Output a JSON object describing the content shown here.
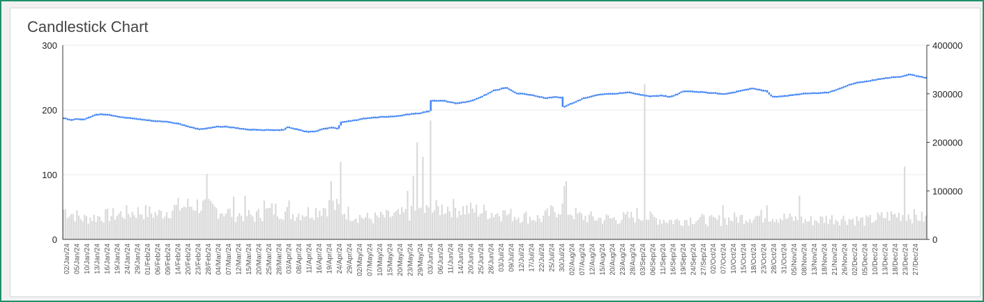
{
  "chart_data": {
    "type": "candlestick",
    "title": "Candlestick Chart",
    "y_left": {
      "min": 0,
      "max": 300,
      "ticks": [
        0,
        100,
        200,
        300
      ],
      "tick_labels": [
        "0",
        "100",
        "200",
        "300"
      ]
    },
    "y_right": {
      "min": 0,
      "max": 400000,
      "ticks": [
        0,
        100000,
        200000,
        300000,
        400000
      ],
      "tick_labels": [
        "0",
        "100000",
        "200000",
        "300000",
        "400000"
      ]
    },
    "x_labels": [
      "02/Jan/24",
      "05/Jan/24",
      "10/Jan/24",
      "13/Jan/24",
      "16/Jan/24",
      "19/Jan/24",
      "24/Jan/24",
      "29/Jan/24",
      "01/Feb/24",
      "06/Feb/24",
      "09/Feb/24",
      "14/Feb/24",
      "20/Feb/24",
      "23/Feb/24",
      "28/Feb/24",
      "04/Mar/24",
      "07/Mar/24",
      "12/Mar/24",
      "15/Mar/24",
      "20/Mar/24",
      "25/Mar/24",
      "28/Mar/24",
      "03/Apr/24",
      "08/Apr/24",
      "11/Apr/24",
      "16/Apr/24",
      "19/Apr/24",
      "24/Apr/24",
      "29/Apr/24",
      "02/May/24",
      "07/May/24",
      "10/May/24",
      "15/May/24",
      "20/May/24",
      "23/May/24",
      "29/May/24",
      "03/Jun/24",
      "06/Jun/24",
      "11/Jun/24",
      "14/Jun/24",
      "20/Jun/24",
      "25/Jun/24",
      "28/Jun/24",
      "03/Jul/24",
      "09/Jul/24",
      "12/Jul/24",
      "17/Jul/24",
      "22/Jul/24",
      "25/Jul/24",
      "30/Jul/24",
      "02/Aug/24",
      "07/Aug/24",
      "12/Aug/24",
      "15/Aug/24",
      "20/Aug/24",
      "23/Aug/24",
      "28/Aug/24",
      "03/Sep/24",
      "06/Sep/24",
      "11/Sep/24",
      "16/Sep/24",
      "19/Sep/24",
      "24/Sep/24",
      "27/Sep/24",
      "02/Oct/24",
      "07/Oct/24",
      "10/Oct/24",
      "15/Oct/24",
      "18/Oct/24",
      "23/Oct/24",
      "28/Oct/24",
      "31/Oct/24",
      "05/Nov/24",
      "08/Nov/24",
      "13/Nov/24",
      "18/Nov/24",
      "21/Nov/24",
      "26/Nov/24",
      "02/Dec/24",
      "05/Dec/24",
      "10/Dec/24",
      "13/Dec/24",
      "18/Dec/24",
      "23/Dec/24",
      "27/Dec/24"
    ],
    "price_profile": [
      [
        0,
        188
      ],
      [
        3,
        185
      ],
      [
        6,
        187
      ],
      [
        10,
        186
      ],
      [
        13,
        189
      ],
      [
        16,
        193
      ],
      [
        19,
        194
      ],
      [
        24,
        193
      ],
      [
        29,
        190
      ],
      [
        32,
        189
      ],
      [
        36,
        188
      ],
      [
        40,
        186
      ],
      [
        46,
        184
      ],
      [
        52,
        183
      ],
      [
        55,
        182
      ],
      [
        60,
        179
      ],
      [
        66,
        174
      ],
      [
        70,
        171
      ],
      [
        74,
        172
      ],
      [
        80,
        175
      ],
      [
        84,
        175
      ],
      [
        90,
        173
      ],
      [
        95,
        171
      ],
      [
        100,
        170
      ],
      [
        105,
        170
      ],
      [
        110,
        170
      ],
      [
        115,
        170
      ],
      [
        117,
        174
      ],
      [
        121,
        171
      ],
      [
        127,
        167
      ],
      [
        132,
        168
      ],
      [
        135,
        171
      ],
      [
        140,
        174
      ],
      [
        143,
        171
      ],
      [
        145,
        182
      ],
      [
        150,
        184
      ],
      [
        158,
        188
      ],
      [
        165,
        190
      ],
      [
        172,
        191
      ],
      [
        180,
        194
      ],
      [
        186,
        196
      ],
      [
        191,
        199
      ],
      [
        192,
        215
      ],
      [
        198,
        215
      ],
      [
        205,
        211
      ],
      [
        210,
        213
      ],
      [
        214,
        216
      ],
      [
        219,
        222
      ],
      [
        225,
        231
      ],
      [
        231,
        235
      ],
      [
        236,
        227
      ],
      [
        242,
        225
      ],
      [
        247,
        222
      ],
      [
        252,
        219
      ],
      [
        256,
        221
      ],
      [
        260,
        220
      ],
      [
        261,
        205
      ],
      [
        265,
        210
      ],
      [
        272,
        219
      ],
      [
        280,
        225
      ],
      [
        288,
        226
      ],
      [
        295,
        228
      ],
      [
        300,
        225
      ],
      [
        306,
        222
      ],
      [
        312,
        223
      ],
      [
        317,
        221
      ],
      [
        321,
        225
      ],
      [
        324,
        230
      ],
      [
        330,
        229
      ],
      [
        340,
        227
      ],
      [
        345,
        225
      ],
      [
        355,
        231
      ],
      [
        360,
        234
      ],
      [
        367,
        230
      ],
      [
        370,
        221
      ],
      [
        376,
        222
      ],
      [
        381,
        224
      ],
      [
        387,
        226
      ],
      [
        393,
        227
      ],
      [
        400,
        228
      ],
      [
        405,
        233
      ],
      [
        410,
        239
      ],
      [
        415,
        243
      ],
      [
        420,
        245
      ],
      [
        425,
        248
      ],
      [
        430,
        250
      ],
      [
        434,
        252
      ],
      [
        438,
        252
      ],
      [
        442,
        256
      ],
      [
        446,
        253
      ],
      [
        451,
        250
      ]
    ],
    "volume_profile": [
      [
        0,
        65000
      ],
      [
        10,
        45000
      ],
      [
        20,
        50000
      ],
      [
        30,
        55000
      ],
      [
        40,
        60000
      ],
      [
        50,
        55000
      ],
      [
        60,
        70000
      ],
      [
        70,
        75000
      ],
      [
        80,
        65000
      ],
      [
        90,
        55000
      ],
      [
        100,
        50000
      ],
      [
        110,
        65000
      ],
      [
        120,
        55000
      ],
      [
        130,
        60000
      ],
      [
        140,
        75000
      ],
      [
        150,
        55000
      ],
      [
        160,
        45000
      ],
      [
        170,
        50000
      ],
      [
        180,
        55000
      ],
      [
        190,
        60000
      ],
      [
        200,
        70000
      ],
      [
        210,
        65000
      ],
      [
        220,
        60000
      ],
      [
        230,
        55000
      ],
      [
        240,
        50000
      ],
      [
        250,
        45000
      ],
      [
        260,
        70000
      ],
      [
        270,
        50000
      ],
      [
        280,
        45000
      ],
      [
        290,
        45000
      ],
      [
        300,
        50000
      ],
      [
        310,
        45000
      ],
      [
        320,
        40000
      ],
      [
        330,
        45000
      ],
      [
        340,
        40000
      ],
      [
        350,
        45000
      ],
      [
        360,
        50000
      ],
      [
        370,
        50000
      ],
      [
        380,
        45000
      ],
      [
        390,
        40000
      ],
      [
        400,
        45000
      ],
      [
        410,
        45000
      ],
      [
        420,
        40000
      ],
      [
        430,
        50000
      ],
      [
        440,
        55000
      ],
      [
        451,
        45000
      ]
    ],
    "volume_spikes": [
      [
        75,
        135000
      ],
      [
        89,
        88000
      ],
      [
        95,
        90000
      ],
      [
        105,
        80000
      ],
      [
        118,
        80000
      ],
      [
        140,
        120000
      ],
      [
        145,
        160000
      ],
      [
        180,
        100000
      ],
      [
        183,
        130000
      ],
      [
        185,
        200000
      ],
      [
        188,
        170000
      ],
      [
        192,
        245000
      ],
      [
        230,
        60000
      ],
      [
        262,
        110000
      ],
      [
        263,
        120000
      ],
      [
        300,
        65000
      ],
      [
        304,
        320000
      ],
      [
        345,
        70000
      ],
      [
        368,
        70000
      ],
      [
        385,
        90000
      ],
      [
        440,
        150000
      ]
    ],
    "colors": {
      "price": "#4285f4",
      "volume": "#d9d9d9",
      "axis": "#333333",
      "grid": "#ebebeb",
      "text": "#222222",
      "axis_label": "#555555",
      "title": "#444444"
    }
  }
}
